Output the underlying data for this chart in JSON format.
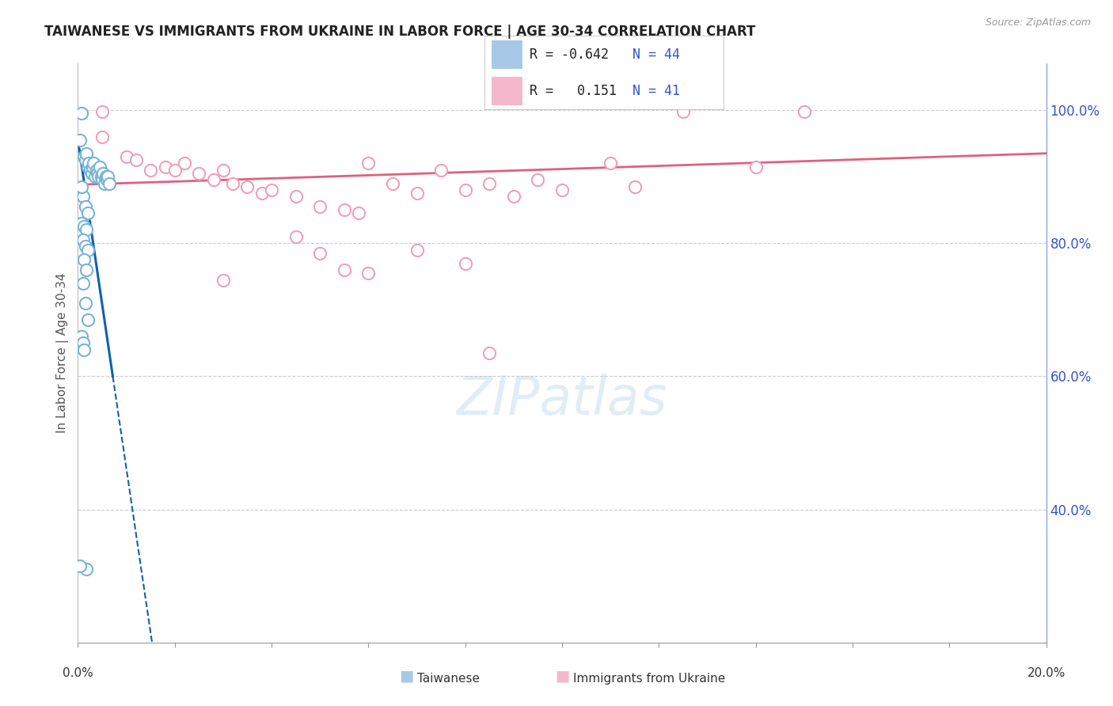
{
  "title": "TAIWANESE VS IMMIGRANTS FROM UKRAINE IN LABOR FORCE | AGE 30-34 CORRELATION CHART",
  "source": "Source: ZipAtlas.com",
  "ylabel": "In Labor Force | Age 30-34",
  "right_yticks": [
    40.0,
    60.0,
    80.0,
    100.0
  ],
  "right_yticklabels": [
    "40.0%",
    "60.0%",
    "80.0%",
    "100.0%"
  ],
  "xlim": [
    0.0,
    20.0
  ],
  "ylim": [
    20.0,
    107.0
  ],
  "watermark_text": "ZIPatlas",
  "taiwanese_color": "#7ab3d9",
  "ukraine_color": "#f0a0b8",
  "tw_line_color": "#1060b0",
  "uk_line_color": "#e06080",
  "taiwanese_scatter": [
    [
      0.08,
      99.5
    ],
    [
      0.05,
      95.5
    ],
    [
      0.12,
      93.0
    ],
    [
      0.15,
      92.5
    ],
    [
      0.18,
      93.5
    ],
    [
      0.2,
      91.5
    ],
    [
      0.22,
      92.0
    ],
    [
      0.25,
      91.0
    ],
    [
      0.28,
      90.5
    ],
    [
      0.3,
      91.5
    ],
    [
      0.32,
      92.0
    ],
    [
      0.35,
      90.0
    ],
    [
      0.38,
      91.0
    ],
    [
      0.4,
      90.5
    ],
    [
      0.42,
      90.0
    ],
    [
      0.45,
      91.5
    ],
    [
      0.48,
      90.0
    ],
    [
      0.5,
      89.5
    ],
    [
      0.52,
      90.5
    ],
    [
      0.55,
      89.0
    ],
    [
      0.58,
      90.0
    ],
    [
      0.6,
      89.5
    ],
    [
      0.62,
      90.0
    ],
    [
      0.65,
      89.0
    ],
    [
      0.1,
      87.0
    ],
    [
      0.15,
      85.5
    ],
    [
      0.2,
      84.5
    ],
    [
      0.08,
      83.0
    ],
    [
      0.12,
      82.5
    ],
    [
      0.18,
      82.0
    ],
    [
      0.1,
      80.5
    ],
    [
      0.15,
      79.5
    ],
    [
      0.2,
      79.0
    ],
    [
      0.12,
      77.5
    ],
    [
      0.18,
      76.0
    ],
    [
      0.1,
      74.0
    ],
    [
      0.15,
      71.0
    ],
    [
      0.2,
      68.5
    ],
    [
      0.08,
      66.0
    ],
    [
      0.1,
      65.0
    ],
    [
      0.12,
      64.0
    ],
    [
      0.18,
      31.0
    ],
    [
      0.05,
      31.5
    ],
    [
      0.08,
      88.5
    ]
  ],
  "ukraine_scatter": [
    [
      0.5,
      99.8
    ],
    [
      0.5,
      96.0
    ],
    [
      1.0,
      93.0
    ],
    [
      1.2,
      92.5
    ],
    [
      1.5,
      91.0
    ],
    [
      1.8,
      91.5
    ],
    [
      2.0,
      91.0
    ],
    [
      2.2,
      92.0
    ],
    [
      2.5,
      90.5
    ],
    [
      2.8,
      89.5
    ],
    [
      3.0,
      91.0
    ],
    [
      3.2,
      89.0
    ],
    [
      3.5,
      88.5
    ],
    [
      3.8,
      87.5
    ],
    [
      4.0,
      88.0
    ],
    [
      4.5,
      87.0
    ],
    [
      5.0,
      85.5
    ],
    [
      5.5,
      85.0
    ],
    [
      5.8,
      84.5
    ],
    [
      6.0,
      92.0
    ],
    [
      6.5,
      89.0
    ],
    [
      7.0,
      87.5
    ],
    [
      7.5,
      91.0
    ],
    [
      8.0,
      88.0
    ],
    [
      8.5,
      89.0
    ],
    [
      9.0,
      87.0
    ],
    [
      9.5,
      89.5
    ],
    [
      10.0,
      88.0
    ],
    [
      11.0,
      92.0
    ],
    [
      11.5,
      88.5
    ],
    [
      12.5,
      99.8
    ],
    [
      14.0,
      91.5
    ],
    [
      4.5,
      81.0
    ],
    [
      5.0,
      78.5
    ],
    [
      6.0,
      75.5
    ],
    [
      7.0,
      79.0
    ],
    [
      8.0,
      77.0
    ],
    [
      5.5,
      76.0
    ],
    [
      3.0,
      74.5
    ],
    [
      8.5,
      63.5
    ],
    [
      15.0,
      99.8
    ]
  ],
  "tw_line_x0": 0.0,
  "tw_line_x1": 0.72,
  "tw_line_y0": 95.5,
  "tw_line_y1": 60.0,
  "tw_dash_x1": 1.55,
  "tw_dash_y1": 24.0,
  "uk_line_x0": 0.0,
  "uk_line_x1": 20.0,
  "uk_line_y0": 88.8,
  "uk_line_y1": 93.5,
  "grid_color": "#cccccc",
  "bg_color": "#ffffff",
  "title_color": "#222222",
  "ylabel_color": "#555555",
  "right_axis_color": "#3355cc",
  "bottom_label_color": "#333333",
  "source_color": "#999999",
  "legend_r1": "R = -0.642",
  "legend_n1": "N = 44",
  "legend_r2": "R =   0.151",
  "legend_n2": "N = 41",
  "legend_color": "#3355cc",
  "legend_box1_color": "#a8c8e8",
  "legend_box2_color": "#f4b8cc",
  "bottom_legend_tw": "Taiwanese",
  "bottom_legend_uk": "Immigrants from Ukraine"
}
